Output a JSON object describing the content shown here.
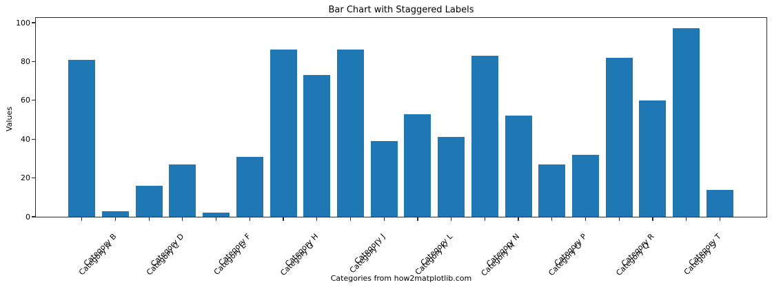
{
  "chart_data": {
    "type": "bar",
    "title": "Bar Chart with Staggered Labels",
    "xlabel": "Categories from how2matplotlib.com",
    "ylabel": "Values",
    "categories": [
      "Category A",
      "Category B",
      "Category C",
      "Category D",
      "Category E",
      "Category F",
      "Category G",
      "Category H",
      "Category I",
      "Category J",
      "Category K",
      "Category L",
      "Category M",
      "Category N",
      "Category O",
      "Category P",
      "Category Q",
      "Category R",
      "Category S",
      "Category T"
    ],
    "values": [
      81,
      3,
      16,
      27,
      2,
      31,
      86,
      73,
      86,
      39,
      53,
      41,
      83,
      52,
      27,
      32,
      82,
      60,
      97,
      14
    ],
    "ylim": [
      0,
      100
    ],
    "yticks": [
      0,
      20,
      40,
      60,
      80,
      100
    ],
    "bar_color": "#1f77b4",
    "text_color": "#000000",
    "spine_color": "#2b2b2b",
    "xtick_label_rotation_deg": 45,
    "xtick_label_stagger": "alternating two-row offsets (even categories low row, odd categories high row)",
    "grid": false,
    "legend": false
  }
}
